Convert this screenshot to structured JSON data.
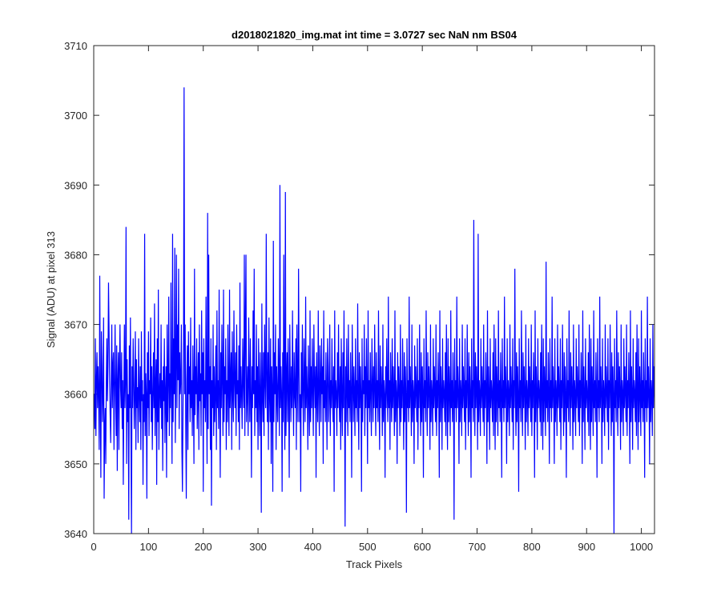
{
  "chart_data": {
    "type": "line",
    "title": "d2018021820_img.mat int time = 3.0727 sec  NaN nm BS04",
    "xlabel": "Track Pixels",
    "ylabel": "Signal (ADU) at pixel 313",
    "xlim": [
      0,
      1024
    ],
    "ylim": [
      3640,
      3710
    ],
    "xticks": [
      0,
      100,
      200,
      300,
      400,
      500,
      600,
      700,
      800,
      900,
      1000
    ],
    "yticks": [
      3640,
      3650,
      3660,
      3670,
      3680,
      3690,
      3700,
      3710
    ],
    "grid": false,
    "series": [
      {
        "color": "#0000ff",
        "x_start": 1,
        "x_step": 1,
        "values": [
          3660,
          3655,
          3668,
          3654,
          3662,
          3666,
          3658,
          3664,
          3660,
          3652,
          3677,
          3660,
          3648,
          3669,
          3664,
          3656,
          3660,
          3671,
          3645,
          3655,
          3658,
          3650,
          3662,
          3668,
          3659,
          3664,
          3676,
          3669,
          3662,
          3657,
          3653,
          3662,
          3670,
          3658,
          3664,
          3666,
          3652,
          3661,
          3670,
          3660,
          3654,
          3667,
          3649,
          3662,
          3666,
          3652,
          3664,
          3670,
          3661,
          3658,
          3666,
          3655,
          3662,
          3647,
          3660,
          3670,
          3658,
          3662,
          3684,
          3650,
          3665,
          3656,
          3660,
          3642,
          3667,
          3658,
          3671,
          3654,
          3640,
          3664,
          3658,
          3668,
          3662,
          3655,
          3660,
          3669,
          3652,
          3665,
          3658,
          3661,
          3653,
          3668,
          3660,
          3656,
          3664,
          3652,
          3669,
          3659,
          3662,
          3647,
          3660,
          3656,
          3683,
          3654,
          3663,
          3660,
          3645,
          3666,
          3658,
          3669,
          3654,
          3662,
          3660,
          3671,
          3656,
          3664,
          3652,
          3660,
          3666,
          3658,
          3673,
          3654,
          3661,
          3665,
          3647,
          3668,
          3656,
          3675,
          3652,
          3660,
          3663,
          3658,
          3670,
          3655,
          3662,
          3649,
          3664,
          3659,
          3668,
          3653,
          3660,
          3664,
          3648,
          3670,
          3656,
          3662,
          3674,
          3654,
          3663,
          3658,
          3676,
          3660,
          3650,
          3683,
          3656,
          3668,
          3660,
          3681,
          3653,
          3664,
          3680,
          3658,
          3670,
          3662,
          3678,
          3655,
          3666,
          3660,
          3662,
          3670,
          3652,
          3646,
          3658,
          3668,
          3704,
          3660,
          3670,
          3656,
          3645,
          3662,
          3667,
          3652,
          3669,
          3660,
          3664,
          3656,
          3671,
          3658,
          3662,
          3654,
          3667,
          3660,
          3650,
          3678,
          3657,
          3664,
          3660,
          3668,
          3655,
          3660,
          3666,
          3652,
          3670,
          3659,
          3663,
          3654,
          3672,
          3660,
          3666,
          3646,
          3668,
          3658,
          3662,
          3656,
          3674,
          3660,
          3650,
          3686,
          3655,
          3680,
          3660,
          3664,
          3652,
          3668,
          3644,
          3662,
          3658,
          3670,
          3654,
          3664,
          3656,
          3660,
          3667,
          3652,
          3672,
          3658,
          3662,
          3655,
          3675,
          3660,
          3648,
          3666,
          3658,
          3670,
          3662,
          3654,
          3675,
          3656,
          3664,
          3660,
          3668,
          3652,
          3662,
          3656,
          3670,
          3660,
          3654,
          3675,
          3658,
          3662,
          3666,
          3652,
          3669,
          3660,
          3656,
          3672,
          3662,
          3658,
          3666,
          3654,
          3670,
          3660,
          3662,
          3656,
          3667,
          3652,
          3676,
          3658,
          3664,
          3660,
          3655,
          3668,
          3662,
          3658,
          3680,
          3654,
          3670,
          3680,
          3656,
          3660,
          3664,
          3654,
          3671,
          3662,
          3656,
          3668,
          3660,
          3648,
          3664,
          3658,
          3672,
          3660,
          3678,
          3654,
          3662,
          3658,
          3670,
          3656,
          3664,
          3652,
          3668,
          3660,
          3654,
          3666,
          3660,
          3643,
          3673,
          3660,
          3656,
          3666,
          3654,
          3670,
          3662,
          3658,
          3683,
          3662,
          3656,
          3666,
          3652,
          3671,
          3660,
          3656,
          3668,
          3650,
          3664,
          3660,
          3646,
          3682,
          3656,
          3666,
          3660,
          3670,
          3652,
          3664,
          3660,
          3656,
          3668,
          3662,
          3654,
          3690,
          3658,
          3664,
          3660,
          3646,
          3666,
          3656,
          3680,
          3660,
          3652,
          3689,
          3654,
          3662,
          3666,
          3656,
          3668,
          3660,
          3648,
          3670,
          3662,
          3656,
          3664,
          3658,
          3672,
          3660,
          3654,
          3666,
          3660,
          3658,
          3668,
          3652,
          3670,
          3662,
          3656,
          3678,
          3664,
          3656,
          3660,
          3646,
          3666,
          3658,
          3670,
          3660,
          3654,
          3668,
          3662,
          3656,
          3674,
          3658,
          3664,
          3660,
          3652,
          3667,
          3660,
          3654,
          3672,
          3656,
          3664,
          3658,
          3668,
          3660,
          3654,
          3670,
          3662,
          3658,
          3664,
          3648,
          3666,
          3660,
          3656,
          3672,
          3660,
          3654,
          3667,
          3662,
          3656,
          3668,
          3660,
          3664,
          3650,
          3672,
          3658,
          3662,
          3656,
          3666,
          3660,
          3652,
          3668,
          3664,
          3656,
          3660,
          3670,
          3654,
          3662,
          3658,
          3668,
          3660,
          3656,
          3664,
          3646,
          3672,
          3658,
          3662,
          3660,
          3654,
          3666,
          3658,
          3670,
          3660,
          3656,
          3664,
          3652,
          3668,
          3660,
          3654,
          3666,
          3658,
          3672,
          3660,
          3641,
          3664,
          3656,
          3668,
          3660,
          3654,
          3670,
          3658,
          3662,
          3656,
          3666,
          3660,
          3648,
          3670,
          3662,
          3656,
          3664,
          3660,
          3654,
          3668,
          3658,
          3662,
          3656,
          3673,
          3660,
          3652,
          3666,
          3658,
          3664,
          3660,
          3646,
          3668,
          3656,
          3662,
          3660,
          3670,
          3654,
          3664,
          3658,
          3668,
          3660,
          3650,
          3672,
          3658,
          3662,
          3656,
          3666,
          3660,
          3654,
          3668,
          3662,
          3656,
          3664,
          3658,
          3670,
          3660,
          3654,
          3666,
          3658,
          3662,
          3656,
          3672,
          3660,
          3652,
          3667,
          3658,
          3664,
          3660,
          3654,
          3670,
          3656,
          3662,
          3660,
          3648,
          3664,
          3658,
          3668,
          3660,
          3656,
          3674,
          3658,
          3662,
          3652,
          3666,
          3660,
          3656,
          3668,
          3658,
          3664,
          3660,
          3654,
          3672,
          3656,
          3662,
          3660,
          3650,
          3666,
          3658,
          3664,
          3660,
          3654,
          3670,
          3656,
          3662,
          3658,
          3668,
          3660,
          3652,
          3666,
          3656,
          3664,
          3660,
          3643,
          3668,
          3658,
          3662,
          3656,
          3674,
          3658,
          3664,
          3660,
          3654,
          3670,
          3656,
          3662,
          3660,
          3650,
          3667,
          3658,
          3664,
          3660,
          3656,
          3668,
          3652,
          3662,
          3658,
          3670,
          3660,
          3654,
          3666,
          3656,
          3664,
          3660,
          3648,
          3668,
          3658,
          3662,
          3656,
          3672,
          3660,
          3654,
          3666,
          3658,
          3664,
          3660,
          3652,
          3670,
          3656,
          3662,
          3660,
          3654,
          3668,
          3658,
          3664,
          3660,
          3656,
          3670,
          3654,
          3662,
          3658,
          3666,
          3660,
          3648,
          3672,
          3656,
          3664,
          3660,
          3652,
          3668,
          3658,
          3662,
          3660,
          3656,
          3666,
          3654,
          3670,
          3660,
          3652,
          3668,
          3656,
          3664,
          3660,
          3654,
          3672,
          3658,
          3662,
          3656,
          3666,
          3660,
          3642,
          3668,
          3658,
          3662,
          3656,
          3674,
          3658,
          3664,
          3660,
          3650,
          3668,
          3656,
          3662,
          3660,
          3654,
          3670,
          3658,
          3664,
          3660,
          3656,
          3668,
          3652,
          3662,
          3658,
          3670,
          3660,
          3654,
          3666,
          3656,
          3664,
          3660,
          3648,
          3668,
          3658,
          3662,
          3656,
          3685,
          3660,
          3654,
          3666,
          3658,
          3664,
          3660,
          3652,
          3683,
          3656,
          3662,
          3660,
          3654,
          3668,
          3658,
          3664,
          3660,
          3656,
          3670,
          3654,
          3662,
          3658,
          3666,
          3660,
          3650,
          3672,
          3656,
          3664,
          3660,
          3652,
          3668,
          3658,
          3662,
          3660,
          3656,
          3666,
          3654,
          3670,
          3660,
          3652,
          3668,
          3656,
          3664,
          3660,
          3654,
          3672,
          3658,
          3662,
          3656,
          3666,
          3660,
          3648,
          3668,
          3658,
          3662,
          3656,
          3674,
          3658,
          3664,
          3660,
          3650,
          3668,
          3656,
          3662,
          3660,
          3654,
          3670,
          3658,
          3664,
          3660,
          3656,
          3668,
          3652,
          3662,
          3658,
          3678,
          3660,
          3654,
          3666,
          3656,
          3664,
          3660,
          3646,
          3668,
          3658,
          3662,
          3656,
          3672,
          3660,
          3654,
          3666,
          3658,
          3664,
          3660,
          3652,
          3670,
          3656,
          3662,
          3660,
          3654,
          3668,
          3658,
          3664,
          3660,
          3656,
          3670,
          3654,
          3662,
          3658,
          3666,
          3660,
          3648,
          3672,
          3656,
          3664,
          3660,
          3652,
          3668,
          3658,
          3662,
          3660,
          3656,
          3666,
          3654,
          3670,
          3660,
          3652,
          3668,
          3656,
          3664,
          3660,
          3654,
          3679,
          3658,
          3662,
          3656,
          3666,
          3660,
          3650,
          3668,
          3658,
          3662,
          3656,
          3674,
          3658,
          3664,
          3660,
          3650,
          3668,
          3656,
          3662,
          3660,
          3654,
          3670,
          3658,
          3664,
          3660,
          3656,
          3668,
          3652,
          3662,
          3658,
          3670,
          3660,
          3654,
          3666,
          3656,
          3664,
          3660,
          3648,
          3668,
          3658,
          3662,
          3656,
          3672,
          3660,
          3654,
          3666,
          3658,
          3664,
          3660,
          3652,
          3670,
          3656,
          3662,
          3660,
          3654,
          3668,
          3658,
          3664,
          3660,
          3656,
          3670,
          3654,
          3662,
          3658,
          3666,
          3660,
          3650,
          3672,
          3656,
          3664,
          3660,
          3652,
          3668,
          3658,
          3662,
          3660,
          3656,
          3666,
          3654,
          3670,
          3660,
          3652,
          3668,
          3656,
          3664,
          3660,
          3654,
          3672,
          3658,
          3662,
          3656,
          3666,
          3660,
          3648,
          3668,
          3658,
          3662,
          3656,
          3674,
          3658,
          3664,
          3660,
          3650,
          3668,
          3656,
          3662,
          3660,
          3654,
          3670,
          3658,
          3664,
          3660,
          3656,
          3668,
          3652,
          3662,
          3658,
          3670,
          3660,
          3654,
          3666,
          3656,
          3664,
          3660,
          3640,
          3668,
          3658,
          3662,
          3656,
          3672,
          3660,
          3654,
          3666,
          3658,
          3664,
          3660,
          3652,
          3670,
          3656,
          3662,
          3660,
          3654,
          3668,
          3658,
          3664,
          3660,
          3656,
          3670,
          3654,
          3662,
          3658,
          3666,
          3660,
          3650,
          3672,
          3656,
          3664,
          3660,
          3652,
          3668,
          3658,
          3662,
          3660,
          3656,
          3666,
          3654,
          3670,
          3660,
          3652,
          3668,
          3656,
          3664,
          3660,
          3654,
          3672,
          3658,
          3662,
          3656,
          3666,
          3660,
          3648,
          3668,
          3658,
          3662,
          3656,
          3674,
          3658,
          3664,
          3660,
          3650,
          3668,
          3656,
          3662,
          3660,
          3654,
          3670,
          3658,
          3664,
          3660,
          3656,
          3668,
          3652,
          3662,
          3658,
          3670,
          3660,
          3654,
          3666,
          3656,
          3664,
          3660,
          3648,
          3668,
          3658,
          3662,
          3656,
          3672,
          3660,
          3654,
          3666,
          3658,
          3664,
          3660,
          3652,
          3670,
          3656,
          3662,
          3660,
          3654,
          3668,
          3658,
          3664,
          3660,
          3656,
          3670,
          3654,
          3662,
          3658,
          3666,
          3660,
          3650,
          3672,
          3656,
          3664,
          3660,
          3652,
          3668,
          3658,
          3662,
          3660,
          3656,
          3666,
          3654,
          3670,
          3660,
          3652,
          3668,
          3656,
          3664,
          3660,
          3654,
          3672,
          3658,
          3662,
          3656,
          3666,
          3660,
          3648,
          3668,
          3658,
          3662,
          3656,
          3674,
          3658,
          3664,
          3660,
          3650,
          3668,
          3656,
          3662,
          3660,
          3654,
          3670,
          3658,
          3664,
          3660,
          3656,
          3668,
          3652,
          3662,
          3658,
          3670,
          3660,
          3654,
          3666,
          3656,
          3664,
          3660,
          3641,
          3668,
          3658,
          3662,
          3656,
          3673,
          3660,
          3654,
          3664,
          3657
        ]
      }
    ]
  }
}
